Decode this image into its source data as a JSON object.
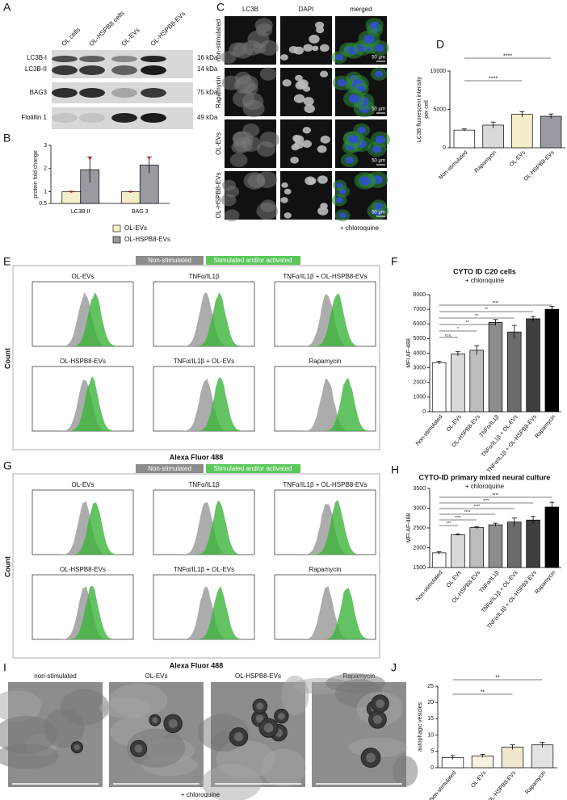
{
  "panels": {
    "A": {
      "label": "A",
      "lanes": [
        "OL cells",
        "OL-HSPB8 cells",
        "OL-EVs",
        "OL-HSPB8-EVs"
      ],
      "bands": [
        "LC3B-I",
        "LC3B-II",
        "BAG3",
        "Flotillin 1"
      ],
      "sizes": [
        "16 kDa",
        "14 kDa",
        "75 kDa",
        "49 kDa"
      ]
    },
    "B": {
      "label": "B",
      "chart": {
        "type": "bar",
        "ylabel": "protein fold change",
        "categories": [
          "LC3B-II",
          "BAG 3"
        ],
        "series": [
          {
            "name": "OL-EVs",
            "color": "#f4efc9",
            "values": [
              1,
              1
            ],
            "errors": [
              0.01,
              0.01
            ]
          },
          {
            "name": "OL-HSPB8-EVs",
            "color": "#9a9aa2",
            "values": [
              1.95,
              2.15
            ],
            "errors": [
              0.55,
              0.35
            ]
          }
        ],
        "ylim": [
          0.5,
          3
        ],
        "yticks": [
          0.5,
          1,
          2,
          3
        ]
      }
    },
    "C": {
      "label": "C",
      "columns": [
        "LC3B",
        "DAPI",
        "merged"
      ],
      "rows": [
        "non-stimulated",
        "Rapamycin",
        "OL-EVs",
        "OL-HSPB8-EVs"
      ],
      "scale_bar": "50 µm",
      "note": "+ chloroquine"
    },
    "D": {
      "label": "D",
      "chart": {
        "type": "bar",
        "ylabel": [
          "LC3B fluorescent intensity",
          "per cell"
        ],
        "categories": [
          "Non-stimulated",
          "Rapamycin",
          "OL-EVs",
          "OL-HSPB8-EVs"
        ],
        "values": [
          2300,
          2950,
          4350,
          4100
        ],
        "errors": [
          150,
          400,
          350,
          300
        ],
        "colors": [
          "#ffffff",
          "#d9d9d9",
          "#f4efc9",
          "#9a9aa2"
        ],
        "ylim": [
          0,
          10000
        ],
        "yticks": [
          0,
          5000,
          10000
        ],
        "significance": [
          "****",
          "****"
        ]
      }
    },
    "E": {
      "label": "E",
      "legend": [
        "Non-stimulated",
        "Stimulated and/or activated"
      ],
      "legend_colors": [
        "#8c8c8c",
        "#5cc85c"
      ],
      "panels": [
        "OL-EVs",
        "TNFα/IL1β",
        "TNFα/IL1β + OL-HSPB8-EVs",
        "OL-HSPB8-EVs",
        "TNFα/IL1β + OL-EVs",
        "Rapamycin"
      ],
      "ylabel": "Count",
      "xlabel": "Alexa Fluor 488"
    },
    "F": {
      "label": "F",
      "chart": {
        "type": "bar",
        "title": "CYTO ID C20 cells",
        "subtitle": "+ chloroquine",
        "ylabel": "MFI AF-488",
        "categories": [
          "Non-stimulated",
          "OL-EVs",
          "OL-HSPB8-EVs",
          "TNFα/IL1β",
          "TNFα/IL1β + OL-EVs",
          "TNFα/IL1β + OL-HSPB8-EVs",
          "Rapamycin"
        ],
        "values": [
          3350,
          3950,
          4200,
          6100,
          5450,
          6350,
          7000
        ],
        "errors": [
          100,
          150,
          300,
          200,
          450,
          150,
          200
        ],
        "colors": [
          "#ffffff",
          "#d9d9d9",
          "#bdbdbd",
          "#8c8c8c",
          "#6b6b6b",
          "#3f3f3f",
          "#000000"
        ],
        "ylim": [
          0,
          8000
        ],
        "yticks": [
          0,
          1000,
          2000,
          3000,
          4000,
          5000,
          6000,
          7000,
          8000
        ],
        "significance": [
          "****",
          "**",
          "**",
          "**",
          "*",
          "n.s."
        ]
      }
    },
    "G": {
      "label": "G",
      "legend": [
        "Non-stimulated",
        "Stimulated and/or activated"
      ],
      "legend_colors": [
        "#8c8c8c",
        "#5cc85c"
      ],
      "panels": [
        "OL-EVs",
        "TNFα/IL1β",
        "TNFα/IL1β + OL-HSPB8-EVs",
        "OL-HSPB8-EVs",
        "TNFα/IL1β + OL-EVs",
        "Rapamycin"
      ],
      "ylabel": "Count",
      "xlabel": "Alexa Fluor 488"
    },
    "H": {
      "label": "H",
      "chart": {
        "type": "bar",
        "title": "CYTO-ID primary mixed neural culture",
        "subtitle": "+ chloroquine",
        "ylabel": "MFI AF-488",
        "categories": [
          "Non-stimulated",
          "OL-EVs",
          "OL-HSPB8-EVs",
          "TNFα/IL1β",
          "TNFα/IL1β + OL-EVs",
          "TNFα/IL1β + OL-HSPB8-EVs",
          "Rapamycin"
        ],
        "values": [
          1870,
          2330,
          2510,
          2580,
          2650,
          2700,
          3030
        ],
        "errors": [
          30,
          20,
          25,
          40,
          100,
          90,
          120
        ],
        "colors": [
          "#ffffff",
          "#d9d9d9",
          "#bdbdbd",
          "#8c8c8c",
          "#6b6b6b",
          "#3f3f3f",
          "#000000"
        ],
        "ylim": [
          1500,
          3500
        ],
        "yticks": [
          1500,
          2000,
          2500,
          3000,
          3500
        ],
        "significance": [
          "****",
          "****",
          "****",
          "****",
          "****",
          "***"
        ]
      }
    },
    "I": {
      "label": "I",
      "images": [
        "non-stimulated",
        "OL-EVs",
        "OL-HSPB8-EVs",
        "Rapamycin"
      ],
      "note": "+ chloroquine"
    },
    "J": {
      "label": "J",
      "chart": {
        "type": "bar",
        "ylabel": "autophagic vesicles",
        "categories": [
          "Non-stimulated",
          "OL-EVs",
          "OL-HSPB8-EVs",
          "Rapamycin"
        ],
        "values": [
          3.1,
          3.6,
          6.3,
          7.0
        ],
        "errors": [
          0.6,
          0.5,
          0.7,
          0.8
        ],
        "colors": [
          "#ffffff",
          "#f7f3e0",
          "#efe8cf",
          "#e3e3e3"
        ],
        "ylim": [
          0,
          25
        ],
        "yticks": [
          0,
          5,
          10,
          15,
          20,
          25
        ],
        "significance": [
          "**",
          "**"
        ]
      }
    }
  }
}
